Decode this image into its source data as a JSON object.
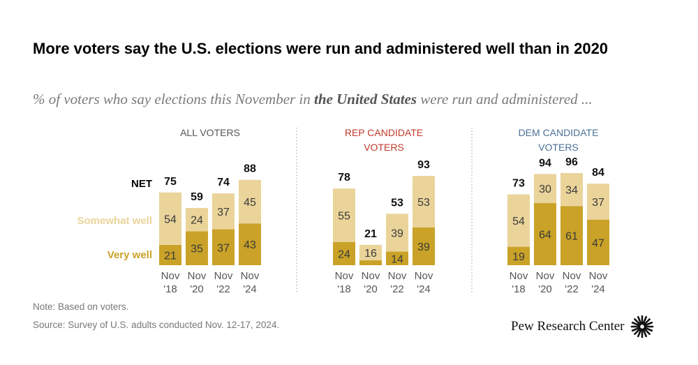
{
  "title": "More voters say the U.S. elections were run and administered well than in 2020",
  "subtitle": {
    "before": "% of voters who say elections this November in ",
    "bold": "the United States",
    "after": " were run and administered ..."
  },
  "labels": {
    "net": "NET",
    "somewhat": "Somewhat well",
    "very": "Very well"
  },
  "colors": {
    "very": "#c9a227",
    "somewhat": "#ead49a",
    "rep": "#c0392b",
    "dem": "#4a7096",
    "neutral": "#555555"
  },
  "chart_data": {
    "type": "bar",
    "stacked": true,
    "categories": [
      [
        "Nov",
        "'18"
      ],
      [
        "Nov",
        "'20"
      ],
      [
        "Nov",
        "'22"
      ],
      [
        "Nov",
        "'24"
      ]
    ],
    "panels": [
      {
        "title": [
          "ALL VOTERS"
        ],
        "title_color": "neutral",
        "series": [
          {
            "name": "Very well",
            "values": [
              21,
              35,
              37,
              43
            ]
          },
          {
            "name": "Somewhat well",
            "values": [
              54,
              24,
              37,
              45
            ]
          }
        ],
        "net": [
          75,
          59,
          74,
          88
        ]
      },
      {
        "title": [
          "REP CANDIDATE",
          "VOTERS"
        ],
        "title_color": "rep",
        "series": [
          {
            "name": "Very well",
            "values": [
              24,
              5,
              14,
              39
            ]
          },
          {
            "name": "Somewhat well",
            "values": [
              55,
              16,
              39,
              53
            ]
          }
        ],
        "net": [
          78,
          21,
          53,
          93
        ]
      },
      {
        "title": [
          "DEM CANDIDATE",
          "VOTERS"
        ],
        "title_color": "dem",
        "series": [
          {
            "name": "Very well",
            "values": [
              19,
              64,
              61,
              47
            ]
          },
          {
            "name": "Somewhat well",
            "values": [
              54,
              30,
              34,
              37
            ]
          }
        ],
        "net": [
          73,
          94,
          96,
          84
        ]
      }
    ],
    "shown_very_labels": [
      [
        21,
        35,
        37,
        43
      ],
      [
        24,
        null,
        14,
        39
      ],
      [
        19,
        64,
        61,
        47
      ]
    ],
    "ylim": [
      0,
      100
    ]
  },
  "footer": {
    "note": "Note: Based on voters.",
    "source": "Source: Survey of U.S. adults conducted Nov. 12-17, 2024.",
    "brand": "Pew Research Center"
  }
}
